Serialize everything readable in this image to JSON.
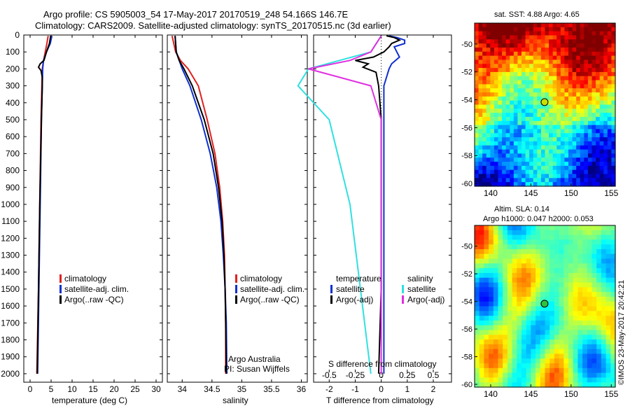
{
  "header": {
    "line1": "Argo profile: CS 5905003_54 17-May-2017 20170519_248 54.166S 146.7E",
    "line2": "Climatology: CARS2009. Satellite-adjusted climatology: synTS_20170515.nc (3d earlier)"
  },
  "depth_ticks": [
    "0",
    "100",
    "200",
    "300",
    "400",
    "500",
    "600",
    "700",
    "800",
    "900",
    "1000",
    "1100",
    "1200",
    "1300",
    "1400",
    "1500",
    "1600",
    "1700",
    "1800",
    "1900",
    "2000"
  ],
  "colors": {
    "climatology": "#e02020",
    "satellite": "#1030d0",
    "argo": "#000000",
    "satellite_s": "#30e0e0",
    "argo_adj": "#e030e0"
  },
  "chart_data": [
    {
      "type": "line",
      "name": "temperature-profile",
      "xlabel": "temperature (deg C)",
      "ylabel": "",
      "xlim": [
        -1.5,
        31.5
      ],
      "ylim": [
        2050,
        0
      ],
      "xticks": [
        "0",
        "5",
        "10",
        "15",
        "20",
        "25",
        "30"
      ],
      "legend": [
        "climatology",
        "satellite-adj. clim.",
        "Argo(..raw -QC)"
      ],
      "legend_placement": "center-right",
      "series": [
        {
          "name": "climatology",
          "color": "#e02020",
          "depth": [
            5,
            50,
            100,
            150,
            200,
            300,
            500,
            1000,
            1500,
            2000
          ],
          "values": [
            4.3,
            4.0,
            3.6,
            3.2,
            2.9,
            2.8,
            2.6,
            2.3,
            2.0,
            1.6
          ]
        },
        {
          "name": "satellite-adj. clim.",
          "color": "#1030d0",
          "depth": [
            5,
            50,
            100,
            150,
            200,
            300,
            500,
            1000,
            1500,
            2000
          ],
          "values": [
            5.2,
            4.8,
            3.9,
            3.2,
            3.0,
            2.9,
            2.7,
            2.4,
            2.1,
            1.8
          ]
        },
        {
          "name": "Argo(..raw -QC)",
          "color": "#000000",
          "depth": [
            5,
            50,
            100,
            150,
            170,
            190,
            210,
            250,
            300,
            500,
            1000,
            1500,
            2000
          ],
          "values": [
            4.9,
            4.6,
            3.9,
            3.3,
            2.4,
            2.0,
            2.6,
            2.9,
            2.9,
            2.7,
            2.3,
            2.0,
            1.7
          ]
        }
      ]
    },
    {
      "type": "line",
      "name": "salinity-profile",
      "xlabel": "salinity",
      "ylabel": "",
      "xlim": [
        33.75,
        36.1
      ],
      "ylim": [
        2050,
        0
      ],
      "xticks": [
        "34",
        "34.5",
        "35",
        "35.5",
        "36"
      ],
      "legend": [
        "climatology",
        "satellite-adj. clim.",
        "Argo(..raw -QC)"
      ],
      "legend_placement": "center-right",
      "annotations": [
        "Argo Australia",
        "PI: Susan Wijffels"
      ],
      "series": [
        {
          "name": "climatology",
          "color": "#e02020",
          "depth": [
            5,
            100,
            150,
            200,
            300,
            500,
            700,
            900,
            1100,
            1300,
            1500,
            1700,
            2000
          ],
          "values": [
            33.83,
            33.89,
            33.97,
            34.1,
            34.27,
            34.42,
            34.55,
            34.63,
            34.68,
            34.71,
            34.72,
            34.73,
            34.73
          ]
        },
        {
          "name": "satellite-adj. clim.",
          "color": "#1030d0",
          "depth": [
            5,
            100,
            150,
            200,
            300,
            500,
            700,
            900,
            1100,
            1300,
            1500,
            1700,
            2000
          ],
          "values": [
            33.88,
            33.9,
            33.95,
            34.0,
            34.13,
            34.32,
            34.47,
            34.58,
            34.65,
            34.69,
            34.72,
            34.74,
            34.75
          ]
        },
        {
          "name": "Argo(..raw -QC)",
          "color": "#000000",
          "depth": [
            5,
            100,
            150,
            200,
            300,
            500,
            700,
            900,
            1100,
            1300,
            1500,
            1700,
            2000
          ],
          "values": [
            33.88,
            33.9,
            33.95,
            34.03,
            34.17,
            34.37,
            34.52,
            34.61,
            34.67,
            34.7,
            34.72,
            34.73,
            34.74
          ]
        }
      ]
    },
    {
      "type": "line",
      "name": "difference-profile",
      "xlabel": "T difference from climatology",
      "ylabel": "",
      "title": "S difference from climatology",
      "xlim": [
        -2.6,
        2.7
      ],
      "ylim": [
        2050,
        0
      ],
      "xticks": [
        "-2",
        "-1",
        "0",
        "1",
        "2"
      ],
      "top_xticks": [
        "-0.5",
        "-0.25",
        "0",
        "0.25",
        "0.5"
      ],
      "legend_temperature": [
        "temperature",
        "satellite",
        "Argo(-adj)"
      ],
      "legend_salinity": [
        "salinity",
        "satellite",
        "Argo(-adj)"
      ],
      "legend_placement": "center",
      "series": [
        {
          "name": "satellite",
          "color": "#1030d0",
          "depth": [
            5,
            15,
            30,
            50,
            70,
            100,
            130,
            170,
            200,
            250,
            300,
            500,
            1000,
            1500,
            1700,
            2000
          ],
          "values": [
            0.3,
            0.6,
            0.9,
            0.9,
            0.5,
            0.6,
            0.7,
            0.4,
            0.3,
            0.2,
            0.1,
            0.1,
            0.1,
            0.1,
            0.1,
            0.1
          ]
        },
        {
          "name": "Argo(-adj)",
          "color": "#000000",
          "depth": [
            5,
            15,
            30,
            50,
            70,
            100,
            130,
            150,
            170,
            190,
            220,
            300,
            500,
            1000,
            1500,
            2000
          ],
          "values": [
            0.2,
            0.5,
            0.7,
            0.4,
            0.3,
            0.1,
            -0.3,
            -1.0,
            -0.5,
            -0.7,
            -0.2,
            -0.1,
            0.0,
            0.0,
            0.0,
            -0.1
          ]
        },
        {
          "name": "satellite (salinity)",
          "color": "#30e0e0",
          "depth": [
            5,
            100,
            150,
            200,
            300,
            500,
            1000,
            1500,
            2000
          ],
          "values": [
            0.0,
            -0.1,
            -0.4,
            -0.7,
            -0.8,
            -0.5,
            -0.3,
            -0.2,
            -0.1
          ]
        },
        {
          "name": "Argo(-adj) (salinity)",
          "color": "#e030e0",
          "depth": [
            5,
            100,
            150,
            200,
            300,
            500,
            1000,
            1500,
            2000
          ],
          "values": [
            0.0,
            -0.1,
            -0.3,
            -0.7,
            -0.1,
            0.0,
            0.0,
            0.0,
            0.0
          ]
        }
      ]
    },
    {
      "type": "heatmap",
      "name": "sst-map",
      "title": "sat. SST: 4.88 Argo: 4.65",
      "xlim": [
        138,
        155.5
      ],
      "ylim": [
        -60.2,
        -48.5
      ],
      "xticks": [
        "140",
        "145",
        "150",
        "155"
      ],
      "yticks": [
        "-50",
        "-52",
        "-54",
        "-56",
        "-58",
        "-60"
      ],
      "marker": {
        "lon": 146.7,
        "lat": -54.166
      }
    },
    {
      "type": "heatmap",
      "name": "sla-map",
      "title1": "Altim. SLA: 0.14",
      "title2": "Argo h1000: 0.047 h2000: 0.053",
      "xlim": [
        138,
        155.5
      ],
      "ylim": [
        -60.2,
        -48.5
      ],
      "xticks": [
        "140",
        "145",
        "150",
        "155"
      ],
      "yticks": [
        "-50",
        "-52",
        "-54",
        "-56",
        "-58",
        "-60"
      ],
      "marker": {
        "lon": 146.7,
        "lat": -54.166
      }
    }
  ],
  "credit": "©IMOS 23-May-2017 20:42:21"
}
